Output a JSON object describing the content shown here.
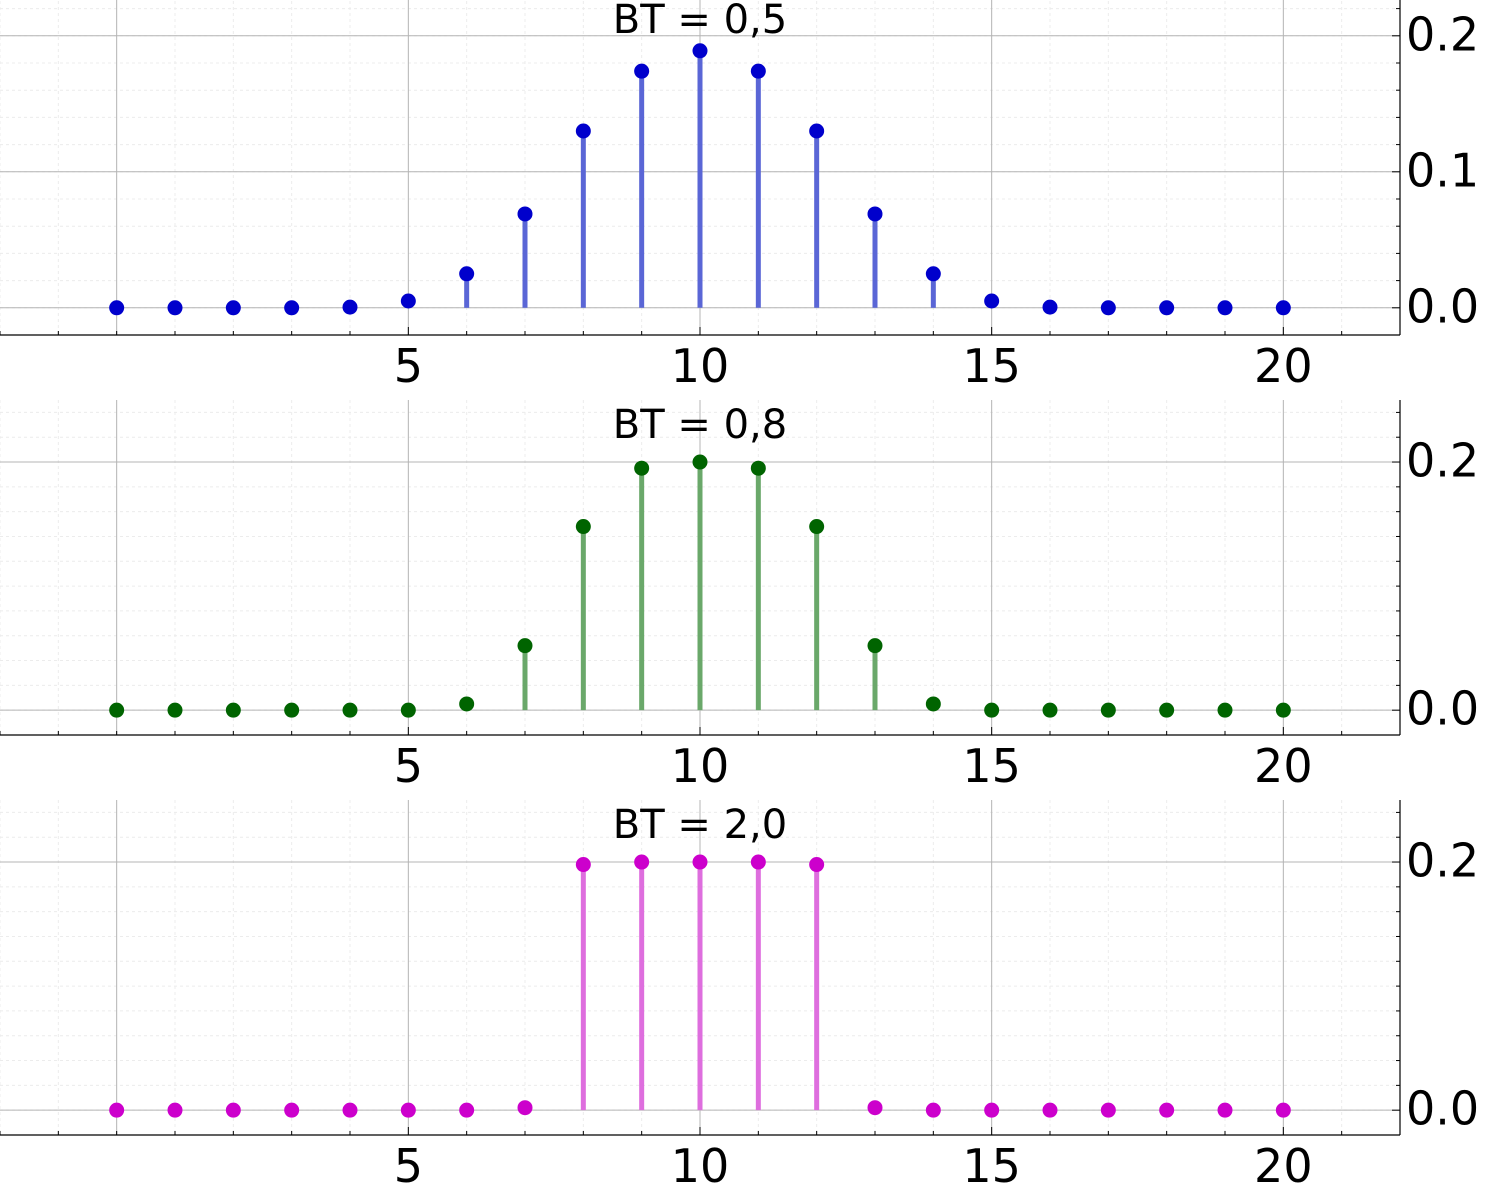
{
  "chart_data": [
    {
      "type": "stem",
      "title": "BT = 0,5",
      "color": "#0000cc",
      "stem_color": "#5a66d6",
      "x": [
        0,
        1,
        2,
        3,
        4,
        5,
        6,
        7,
        8,
        9,
        10,
        11,
        12,
        13,
        14,
        15,
        16,
        17,
        18,
        19,
        20
      ],
      "values": [
        0,
        0,
        0,
        0,
        0.0005,
        0.005,
        0.025,
        0.069,
        0.13,
        0.174,
        0.189,
        0.174,
        0.13,
        0.069,
        0.025,
        0.005,
        0.0005,
        0,
        0,
        0,
        0
      ],
      "xlim": [
        -2,
        22
      ],
      "ylim": [
        -0.02,
        0.23
      ],
      "xticks": [
        5,
        10,
        15,
        20
      ],
      "xtick_labels": [
        "5",
        "10",
        "15",
        "20"
      ],
      "yticks": [
        0.0,
        0.1,
        0.2
      ],
      "ytick_labels": [
        "0.0",
        "0.1",
        "0.2"
      ],
      "grid": true,
      "xlabel": "",
      "ylabel": ""
    },
    {
      "type": "stem",
      "title": "BT = 0,8",
      "color": "#006400",
      "stem_color": "#6aa86a",
      "x": [
        0,
        1,
        2,
        3,
        4,
        5,
        6,
        7,
        8,
        9,
        10,
        11,
        12,
        13,
        14,
        15,
        16,
        17,
        18,
        19,
        20
      ],
      "values": [
        0,
        0,
        0,
        0,
        0,
        0,
        0.005,
        0.052,
        0.148,
        0.195,
        0.2,
        0.195,
        0.148,
        0.052,
        0.005,
        0,
        0,
        0,
        0,
        0,
        0
      ],
      "xlim": [
        -2,
        22
      ],
      "ylim": [
        -0.02,
        0.25
      ],
      "xticks": [
        5,
        10,
        15,
        20
      ],
      "xtick_labels": [
        "5",
        "10",
        "15",
        "20"
      ],
      "yticks": [
        0.0,
        0.2
      ],
      "ytick_labels": [
        "0.0",
        "0.2"
      ],
      "grid": true,
      "xlabel": "",
      "ylabel": ""
    },
    {
      "type": "stem",
      "title": "BT = 2,0",
      "color": "#cc00cc",
      "stem_color": "#de6ede",
      "x": [
        0,
        1,
        2,
        3,
        4,
        5,
        6,
        7,
        8,
        9,
        10,
        11,
        12,
        13,
        14,
        15,
        16,
        17,
        18,
        19,
        20
      ],
      "values": [
        0,
        0,
        0,
        0,
        0,
        0,
        0,
        0.002,
        0.198,
        0.2,
        0.2,
        0.2,
        0.198,
        0.002,
        0,
        0,
        0,
        0,
        0,
        0,
        0
      ],
      "xlim": [
        -2,
        22
      ],
      "ylim": [
        -0.02,
        0.25
      ],
      "xticks": [
        5,
        10,
        15,
        20
      ],
      "xtick_labels": [
        "5",
        "10",
        "15",
        "20"
      ],
      "yticks": [
        0.0,
        0.2
      ],
      "ytick_labels": [
        "0.0",
        "0.2"
      ],
      "grid": true,
      "xlabel": "",
      "ylabel": ""
    }
  ]
}
